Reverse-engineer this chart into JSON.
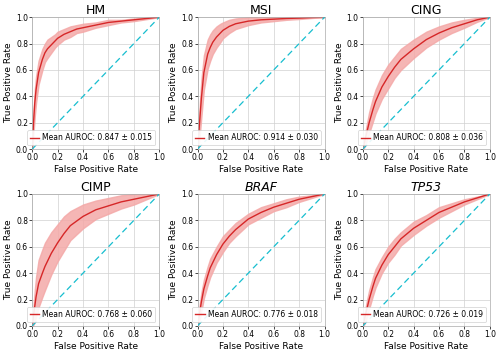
{
  "subplots": [
    {
      "title": "HM",
      "title_style": "normal",
      "auroc": "0.847",
      "std": "0.015",
      "mean_fpr": [
        0.0,
        0.005,
        0.01,
        0.02,
        0.03,
        0.05,
        0.08,
        0.1,
        0.12,
        0.15,
        0.18,
        0.2,
        0.25,
        0.3,
        0.35,
        0.4,
        0.5,
        0.6,
        0.7,
        0.8,
        0.9,
        1.0
      ],
      "mean_tpr": [
        0.0,
        0.1,
        0.2,
        0.35,
        0.45,
        0.58,
        0.68,
        0.73,
        0.76,
        0.79,
        0.82,
        0.84,
        0.87,
        0.89,
        0.91,
        0.92,
        0.94,
        0.96,
        0.97,
        0.98,
        0.99,
        1.0
      ],
      "std_tpr": [
        0.0,
        0.06,
        0.08,
        0.1,
        0.1,
        0.09,
        0.08,
        0.07,
        0.07,
        0.06,
        0.05,
        0.05,
        0.04,
        0.04,
        0.03,
        0.03,
        0.02,
        0.02,
        0.01,
        0.01,
        0.005,
        0.0
      ]
    },
    {
      "title": "MSI",
      "title_style": "normal",
      "auroc": "0.914",
      "std": "0.030",
      "mean_fpr": [
        0.0,
        0.005,
        0.01,
        0.02,
        0.03,
        0.05,
        0.08,
        0.1,
        0.12,
        0.15,
        0.18,
        0.2,
        0.25,
        0.3,
        0.4,
        0.5,
        0.6,
        0.7,
        0.8,
        0.9,
        1.0
      ],
      "mean_tpr": [
        0.0,
        0.05,
        0.12,
        0.25,
        0.38,
        0.58,
        0.72,
        0.77,
        0.81,
        0.85,
        0.88,
        0.9,
        0.93,
        0.95,
        0.97,
        0.98,
        0.985,
        0.99,
        0.993,
        0.997,
        1.0
      ],
      "std_tpr": [
        0.0,
        0.05,
        0.08,
        0.12,
        0.14,
        0.13,
        0.11,
        0.1,
        0.09,
        0.08,
        0.07,
        0.06,
        0.05,
        0.04,
        0.03,
        0.02,
        0.015,
        0.01,
        0.007,
        0.003,
        0.0
      ]
    },
    {
      "title": "CING",
      "title_style": "normal",
      "auroc": "0.808",
      "std": "0.036",
      "mean_fpr": [
        0.0,
        0.005,
        0.01,
        0.02,
        0.03,
        0.05,
        0.08,
        0.1,
        0.15,
        0.2,
        0.25,
        0.3,
        0.4,
        0.5,
        0.6,
        0.7,
        0.8,
        0.9,
        1.0
      ],
      "mean_tpr": [
        0.0,
        0.02,
        0.04,
        0.08,
        0.12,
        0.2,
        0.3,
        0.36,
        0.47,
        0.55,
        0.62,
        0.68,
        0.76,
        0.83,
        0.88,
        0.92,
        0.95,
        0.98,
        1.0
      ],
      "std_tpr": [
        0.0,
        0.02,
        0.03,
        0.05,
        0.06,
        0.08,
        0.09,
        0.09,
        0.09,
        0.09,
        0.08,
        0.08,
        0.07,
        0.06,
        0.05,
        0.04,
        0.03,
        0.015,
        0.0
      ]
    },
    {
      "title": "CIMP",
      "title_style": "normal",
      "auroc": "0.768",
      "std": "0.060",
      "mean_fpr": [
        0.0,
        0.005,
        0.01,
        0.02,
        0.03,
        0.05,
        0.08,
        0.1,
        0.15,
        0.2,
        0.25,
        0.3,
        0.4,
        0.5,
        0.6,
        0.7,
        0.8,
        0.9,
        1.0
      ],
      "mean_tpr": [
        0.0,
        0.04,
        0.08,
        0.15,
        0.22,
        0.32,
        0.4,
        0.45,
        0.55,
        0.63,
        0.7,
        0.76,
        0.83,
        0.88,
        0.91,
        0.94,
        0.96,
        0.98,
        1.0
      ],
      "std_tpr": [
        0.0,
        0.04,
        0.07,
        0.12,
        0.15,
        0.18,
        0.18,
        0.18,
        0.16,
        0.14,
        0.13,
        0.11,
        0.09,
        0.07,
        0.06,
        0.05,
        0.04,
        0.02,
        0.0
      ]
    },
    {
      "title": "BRAF",
      "title_style": "italic",
      "auroc": "0.776",
      "std": "0.018",
      "mean_fpr": [
        0.0,
        0.005,
        0.01,
        0.02,
        0.03,
        0.05,
        0.08,
        0.1,
        0.15,
        0.2,
        0.25,
        0.3,
        0.4,
        0.5,
        0.6,
        0.7,
        0.8,
        0.9,
        1.0
      ],
      "mean_tpr": [
        0.0,
        0.03,
        0.06,
        0.12,
        0.18,
        0.28,
        0.38,
        0.44,
        0.54,
        0.62,
        0.68,
        0.73,
        0.81,
        0.86,
        0.9,
        0.93,
        0.96,
        0.98,
        1.0
      ],
      "std_tpr": [
        0.0,
        0.03,
        0.04,
        0.06,
        0.07,
        0.07,
        0.07,
        0.07,
        0.06,
        0.06,
        0.05,
        0.05,
        0.04,
        0.04,
        0.03,
        0.03,
        0.02,
        0.01,
        0.0
      ]
    },
    {
      "title": "TP53",
      "title_style": "italic",
      "auroc": "0.726",
      "std": "0.019",
      "mean_fpr": [
        0.0,
        0.005,
        0.01,
        0.02,
        0.03,
        0.05,
        0.08,
        0.1,
        0.15,
        0.2,
        0.25,
        0.3,
        0.4,
        0.5,
        0.6,
        0.7,
        0.8,
        0.9,
        1.0
      ],
      "mean_tpr": [
        0.0,
        0.02,
        0.04,
        0.08,
        0.12,
        0.2,
        0.3,
        0.36,
        0.46,
        0.54,
        0.6,
        0.66,
        0.74,
        0.8,
        0.86,
        0.9,
        0.94,
        0.97,
        1.0
      ],
      "std_tpr": [
        0.0,
        0.02,
        0.03,
        0.05,
        0.06,
        0.07,
        0.07,
        0.07,
        0.06,
        0.06,
        0.06,
        0.05,
        0.05,
        0.04,
        0.04,
        0.03,
        0.02,
        0.01,
        0.0
      ]
    }
  ],
  "line_color": "#d62728",
  "fill_color": "#f4a9a8",
  "diag_color": "#17becf",
  "xlabel": "False Positive Rate",
  "ylabel": "True Positive Rate",
  "tick_labels": [
    "0.0",
    "0.2",
    "0.4",
    "0.6",
    "0.8",
    "1.0"
  ],
  "tick_values": [
    0.0,
    0.2,
    0.4,
    0.6,
    0.8,
    1.0
  ],
  "grid_color": "#d0d0d0",
  "background_color": "#ffffff",
  "legend_fontsize": 5.5,
  "axis_label_fontsize": 6.5,
  "tick_fontsize": 5.5,
  "title_fontsize": 9
}
